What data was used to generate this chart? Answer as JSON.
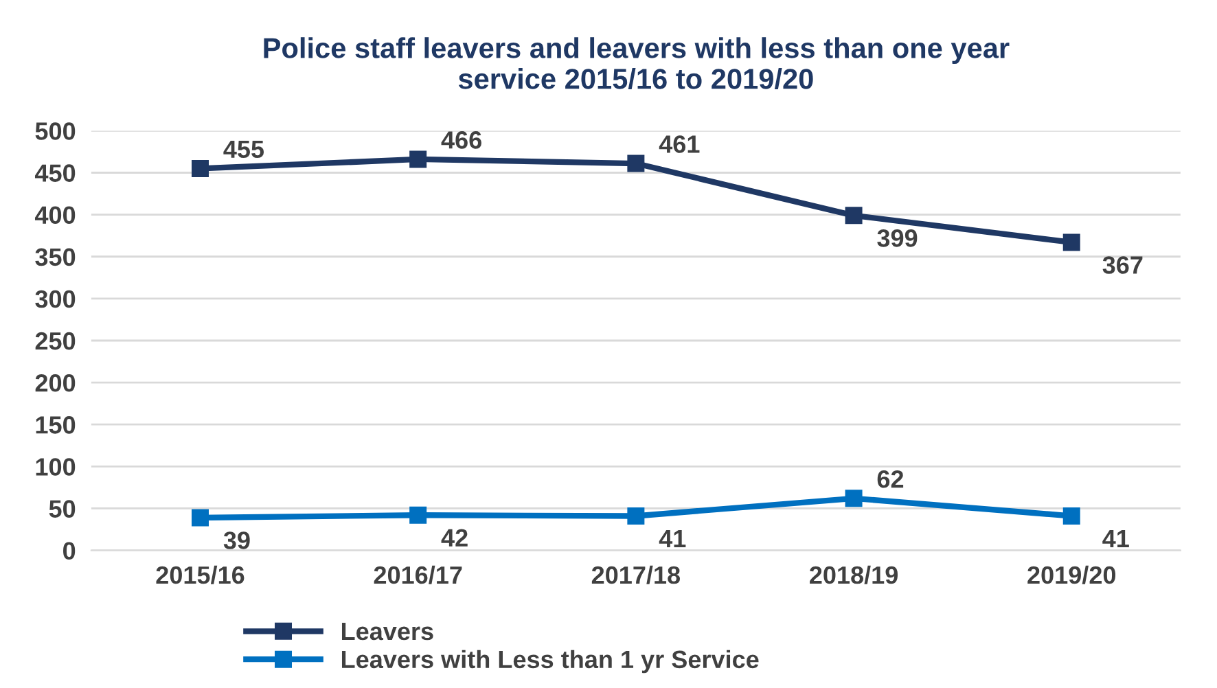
{
  "chart_data": {
    "type": "line",
    "title": "Police staff leavers and leavers with less than one year\nservice 2015/16 to 2019/20",
    "categories": [
      "2015/16",
      "2016/17",
      "2017/18",
      "2018/19",
      "2019/20"
    ],
    "series": [
      {
        "name": "Leavers",
        "color": "#1f3864",
        "values": [
          455,
          466,
          461,
          399,
          367
        ]
      },
      {
        "name": "Leavers with Less than 1 yr Service",
        "color": "#0070c0",
        "values": [
          39,
          42,
          41,
          62,
          41
        ]
      }
    ],
    "ylim": [
      0,
      500
    ],
    "yticks": [
      0,
      50,
      100,
      150,
      200,
      250,
      300,
      350,
      400,
      450,
      500
    ],
    "grid": "y",
    "legend": "bottom",
    "marker": "square",
    "line_style": "solid",
    "data_labels": true
  }
}
